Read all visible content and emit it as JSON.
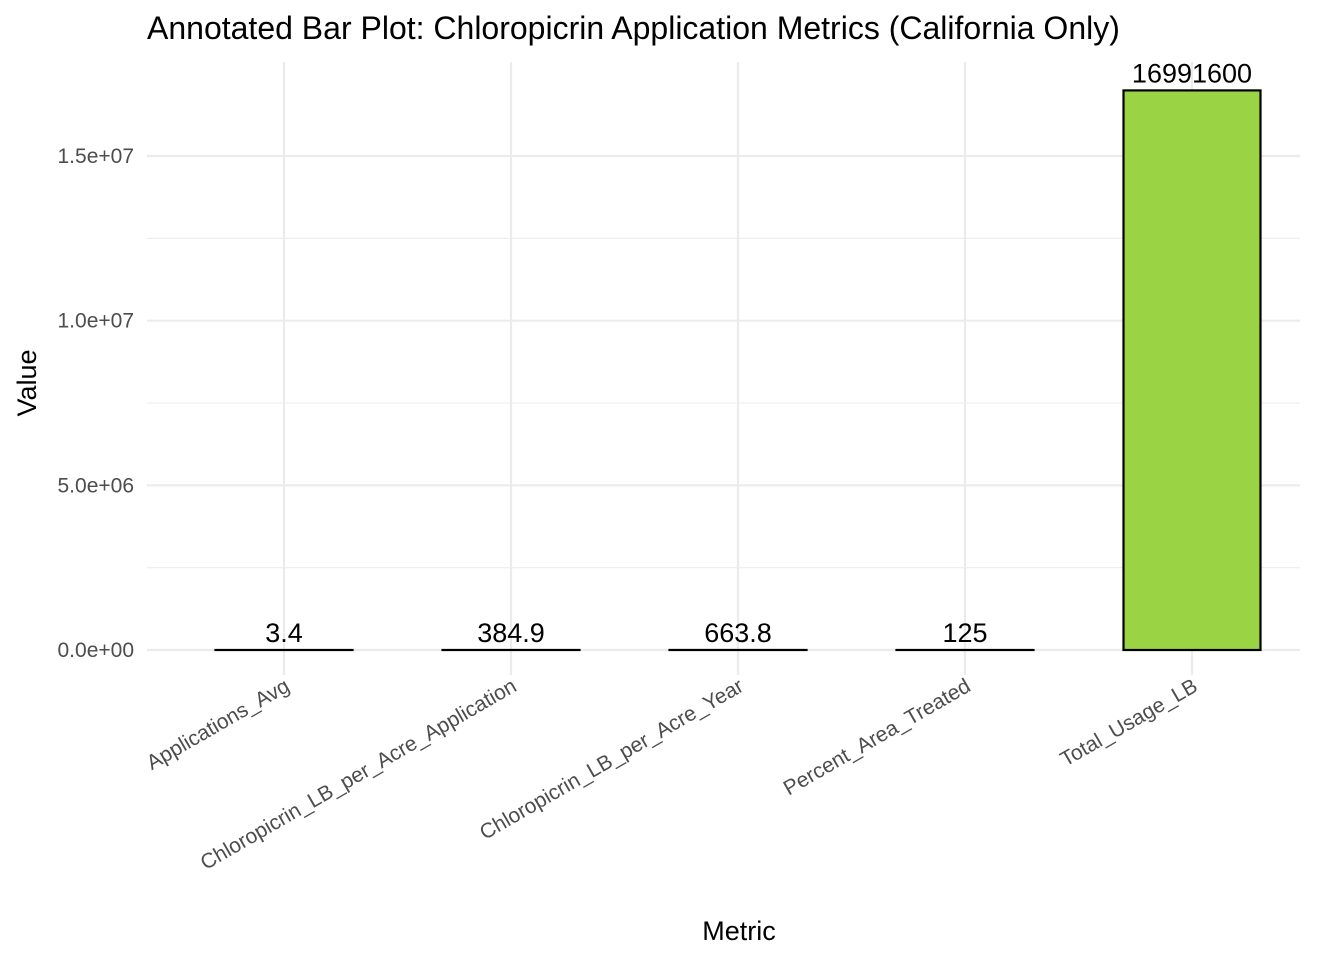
{
  "chart_data": {
    "type": "bar",
    "title": "Annotated Bar Plot: Chloropicrin Application Metrics (California Only)",
    "xlabel": "Metric",
    "ylabel": "Value",
    "categories": [
      "Applications_Avg",
      "Chloropicrin_LB_per_Acre_Application",
      "Chloropicrin_LB_per_Acre_Year",
      "Percent_Area_Treated",
      "Total_Usage_LB"
    ],
    "values": [
      3.4,
      384.9,
      663.8,
      125,
      16991600
    ],
    "data_labels": [
      "3.4",
      "384.9",
      "663.8",
      "125",
      "16991600"
    ],
    "ylim": [
      0,
      17500000
    ],
    "y_ticks": [
      0,
      5000000,
      10000000,
      15000000
    ],
    "y_tick_labels": [
      "0.0e+00",
      "5.0e+06",
      "1.0e+07",
      "1.5e+07"
    ],
    "y_minor_ticks": [
      2500000,
      7500000,
      12500000
    ],
    "grid": true,
    "legend": "none",
    "bar_fill": "#9ad445",
    "bar_outline": "#000000"
  }
}
